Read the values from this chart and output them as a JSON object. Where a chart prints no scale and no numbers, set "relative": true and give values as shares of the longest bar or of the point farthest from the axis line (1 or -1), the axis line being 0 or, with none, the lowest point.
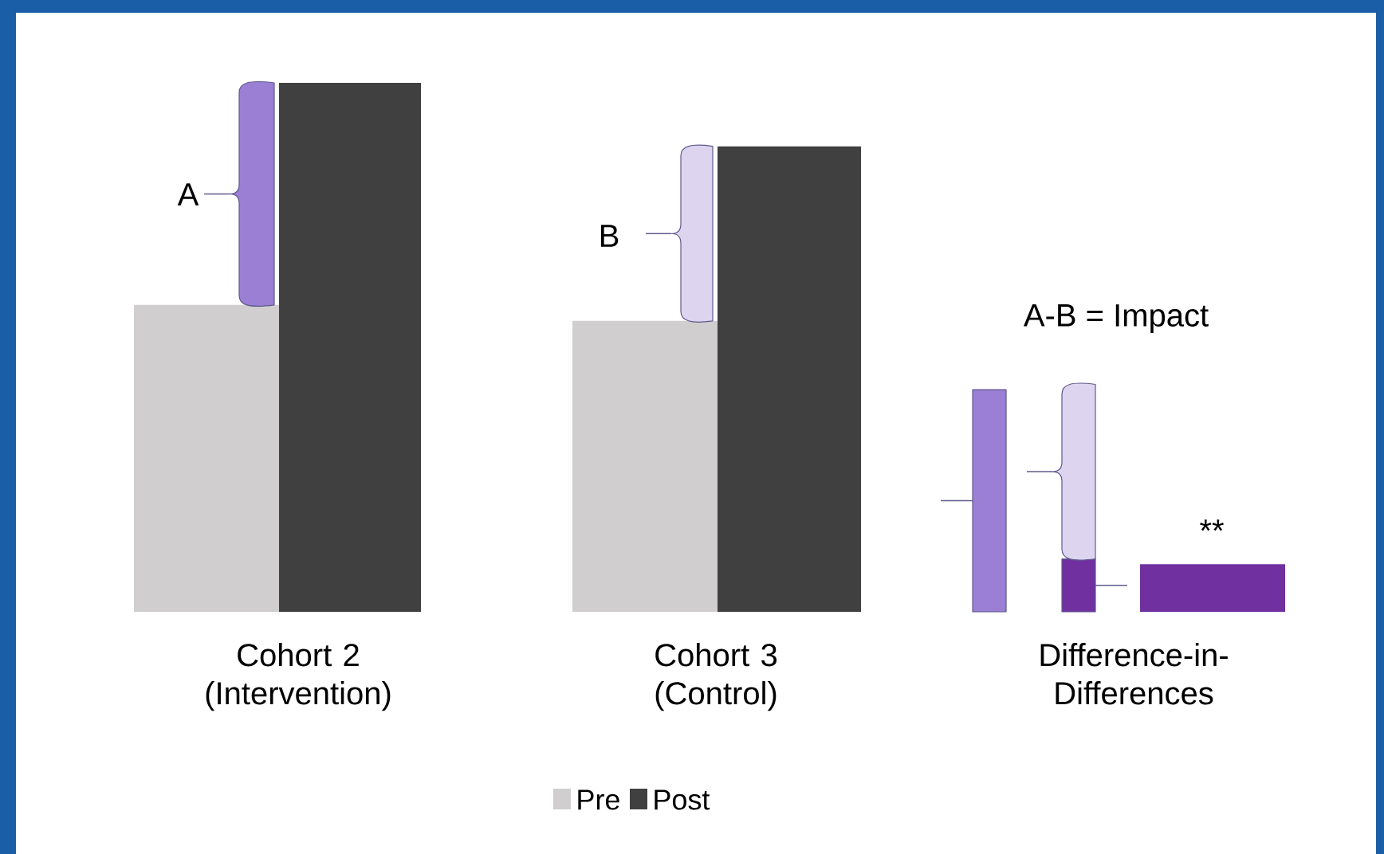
{
  "chart_data": {
    "type": "bar",
    "relative": true,
    "legend": "bottom",
    "categories": [
      "Cohort 2 (Intervention)",
      "Cohort 3 (Control)",
      "Difference-in-Differences"
    ],
    "series": [
      {
        "name": "Pre",
        "color": "#d0cece",
        "values": [
          0.58,
          0.55,
          null
        ]
      },
      {
        "name": "Post",
        "color": "#404040",
        "values": [
          1,
          0.88,
          null
        ]
      },
      {
        "color": "#9b7fd4",
        "values": [
          null,
          null,
          0.42
        ]
      },
      {
        "color": "#7030a0",
        "values": [
          null,
          null,
          0.1
        ]
      },
      {
        "color": "#7030a0",
        "values": [
          null,
          null,
          0.09
        ]
      }
    ],
    "annotations": [
      "A",
      "B",
      "A-B = Impact",
      "**"
    ]
  }
}
